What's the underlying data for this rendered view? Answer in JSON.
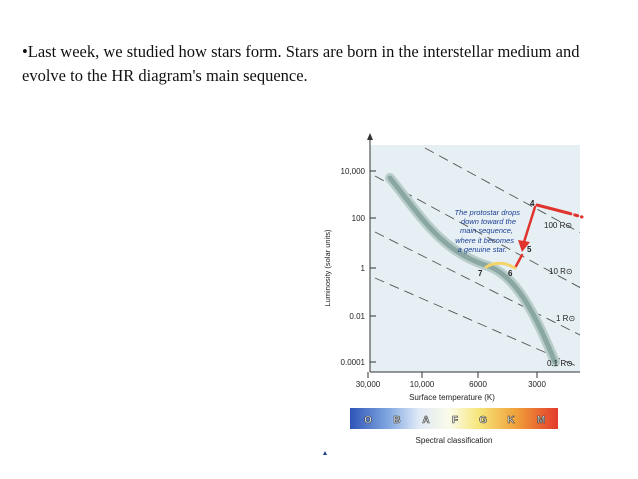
{
  "slide": {
    "bullet_line1": "•Last week, we studied how stars form. Stars are born in the interstellar medium and",
    "bullet_line2": "evolve to the HR diagram's main sequence."
  },
  "hr_diagram": {
    "ylabel": "Luminosity (solar units)",
    "xlabel": "Surface temperature (K)",
    "y_ticks": [
      "10,000",
      "100",
      "1",
      "0.01",
      "0.0001"
    ],
    "x_ticks": [
      "30,000",
      "10,000",
      "6000",
      "3000"
    ],
    "radius_labels": [
      "100 R⊙",
      "10 R⊙",
      "1 R⊙",
      "0.1 R⊙"
    ],
    "annotation_lines": [
      "The protostar drops",
      "down toward the",
      "main sequence,",
      "where it becomes",
      "a genuine star."
    ],
    "point_labels": [
      "4",
      "5",
      "6",
      "7"
    ],
    "spectral_caption": "Spectral classification",
    "spectral_classes": [
      "O",
      "B",
      "A",
      "F",
      "G",
      "K",
      "M"
    ],
    "colors": {
      "panel": "#e6eff3",
      "main_sequence": "#8aa7a3",
      "protostar_track": "#e0342c",
      "star_yellow": "#f4d46a"
    }
  }
}
